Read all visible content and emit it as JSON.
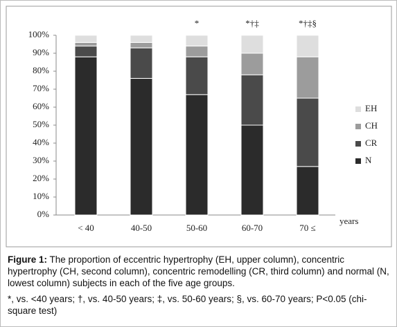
{
  "chart_data": {
    "type": "stacked-bar",
    "categories": [
      "< 40",
      "40-50",
      "50-60",
      "60-70",
      "70 ≤"
    ],
    "annotations": [
      null,
      null,
      "*",
      "*†‡",
      "*†‡§"
    ],
    "x_label": "years",
    "series": [
      {
        "name": "N",
        "color": "#2b2b2b",
        "values": [
          88,
          76,
          67,
          50,
          27
        ]
      },
      {
        "name": "CR",
        "color": "#4a4a4a",
        "values": [
          6,
          17,
          21,
          28,
          38
        ]
      },
      {
        "name": "CH",
        "color": "#9c9c9c",
        "values": [
          2,
          3,
          6,
          12,
          23
        ]
      },
      {
        "name": "EH",
        "color": "#dedede",
        "values": [
          4,
          4,
          6,
          10,
          12
        ]
      }
    ],
    "ylim": [
      0,
      100
    ],
    "yticks": [
      {
        "value": 0,
        "label": "0%"
      },
      {
        "value": 10,
        "label": "10%"
      },
      {
        "value": 20,
        "label": "20%"
      },
      {
        "value": 30,
        "label": "30%"
      },
      {
        "value": 40,
        "label": "40%"
      },
      {
        "value": 50,
        "label": "50%"
      },
      {
        "value": 60,
        "label": "60%"
      },
      {
        "value": 70,
        "label": "70%"
      },
      {
        "value": 80,
        "label": "80%"
      },
      {
        "value": 90,
        "label": "90%"
      },
      {
        "value": 100,
        "label": "100%"
      }
    ]
  },
  "caption": {
    "label": "Figure 1:",
    "text": " The proportion of eccentric hypertrophy (EH, upper column), concentric hypertrophy (CH, second column), concentric remodelling (CR, third column) and normal (N, lowest column) subjects in each of the five age groups.",
    "footnote": "*, vs. <40 years; †, vs. 40-50 years; ‡, vs. 50-60 years; §, vs. 60-70 years; P<0.05 (chi-square test)"
  }
}
